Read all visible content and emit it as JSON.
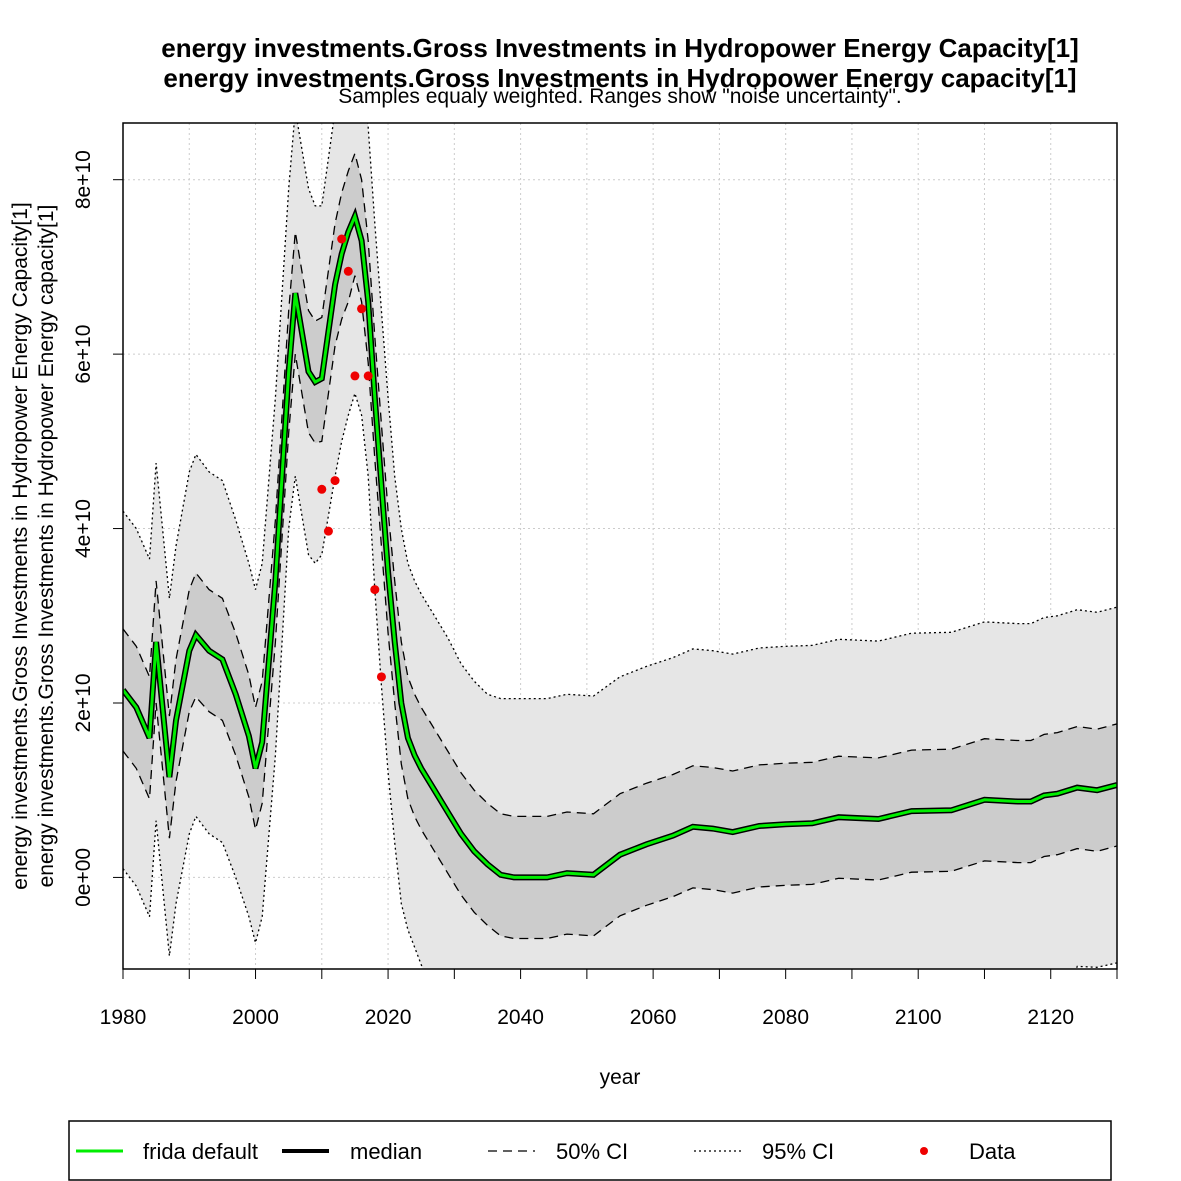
{
  "titles": [
    "energy investments.Gross Investments in Hydropower Energy Capacity[1]",
    "energy investments.Gross Investments in Hydropower Energy capacity[1]"
  ],
  "subtitle": "Samples equaly weighted. Ranges show \"noise uncertainty\".",
  "xlabel": "year",
  "ylabels": [
    "energy investments.Gross Investments in Hydropower Energy Capacity[1]",
    "energy investments.Gross Investments in Hydropower Energy capacity[1]"
  ],
  "legend": {
    "frida": "frida default",
    "median": "median",
    "ci50": "50% CI",
    "ci95": "95% CI",
    "data": "Data"
  },
  "colors": {
    "frida": "#00ee00",
    "median": "#000000",
    "ci50_fill": "#cccccc",
    "ci95_fill": "#e6e6e6",
    "data": "#ee0000",
    "grid": "#cccccc"
  },
  "chart_data": {
    "type": "line",
    "xlim": [
      1980,
      2130
    ],
    "ylim": [
      -10500000000.0,
      86500000000.0
    ],
    "xticks": [
      1980,
      2000,
      2020,
      2040,
      2060,
      2080,
      2100,
      2120
    ],
    "xtick_labels": [
      "1980",
      "2000",
      "2020",
      "2040",
      "2060",
      "2080",
      "2100",
      "2120"
    ],
    "yticks": [
      0,
      20000000000.0,
      40000000000.0,
      60000000000.0,
      80000000000.0
    ],
    "ytick_labels": [
      "0e+00",
      "2e+10",
      "4e+10",
      "6e+10",
      "8e+10"
    ],
    "grid": true,
    "legend_position": "bottom",
    "x": [
      1980,
      1982,
      1984,
      1985,
      1987,
      1988,
      1990,
      1991,
      1993,
      1995,
      1997,
      1999,
      2000,
      2001,
      2003,
      2005,
      2006,
      2008,
      2009,
      2010,
      2012,
      2013,
      2014,
      2015,
      2016,
      2017,
      2018,
      2019,
      2020,
      2021,
      2022,
      2023,
      2024,
      2025,
      2027,
      2029,
      2031,
      2033,
      2035,
      2037,
      2039,
      2040,
      2044,
      2047,
      2051,
      2055,
      2059,
      2063,
      2066,
      2069,
      2072,
      2076,
      2080,
      2084,
      2088,
      2094,
      2099,
      2105,
      2110,
      2115,
      2117,
      2119,
      2121,
      2124,
      2127,
      2130
    ],
    "series": [
      {
        "name": "frida default",
        "values": [
          21500000000.0,
          19500000000.0,
          16000000000.0,
          27000000000.0,
          11500000000.0,
          18000000000.0,
          26000000000.0,
          27800000000.0,
          26000000000.0,
          25000000000.0,
          21000000000.0,
          16200000000.0,
          12500000000.0,
          15500000000.0,
          34000000000.0,
          58000000000.0,
          67000000000.0,
          58000000000.0,
          56800000000.0,
          57200000000.0,
          68000000000.0,
          71500000000.0,
          74000000000.0,
          75800000000.0,
          73000000000.0,
          66000000000.0,
          55000000000.0,
          45000000000.0,
          35000000000.0,
          27000000000.0,
          20000000000.0,
          16000000000.0,
          14000000000.0,
          12500000000.0,
          10000000000.0,
          7500000000.0,
          5000000000.0,
          3000000000.0,
          1500000000.0,
          300000000.0,
          0,
          0,
          0,
          500000000.0,
          300000000.0,
          2600000000.0,
          3800000000.0,
          4800000000.0,
          5800000000.0,
          5600000000.0,
          5200000000.0,
          5900000000.0,
          6100000000.0,
          6200000000.0,
          6900000000.0,
          6700000000.0,
          7600000000.0,
          7700000000.0,
          8900000000.0,
          8700000000.0,
          8700000000.0,
          9400000000.0,
          9600000000.0,
          10300000000.0,
          10000000000.0,
          10600000000.0
        ]
      },
      {
        "name": "median",
        "values": [
          21500000000.0,
          19500000000.0,
          16000000000.0,
          27000000000.0,
          11500000000.0,
          18000000000.0,
          26000000000.0,
          27800000000.0,
          26000000000.0,
          25000000000.0,
          21000000000.0,
          16200000000.0,
          12500000000.0,
          15500000000.0,
          34000000000.0,
          58000000000.0,
          67000000000.0,
          58000000000.0,
          56800000000.0,
          57200000000.0,
          68000000000.0,
          71500000000.0,
          74000000000.0,
          75800000000.0,
          73000000000.0,
          66000000000.0,
          55000000000.0,
          45000000000.0,
          35000000000.0,
          27000000000.0,
          20000000000.0,
          16000000000.0,
          14000000000.0,
          12500000000.0,
          10000000000.0,
          7500000000.0,
          5000000000.0,
          3000000000.0,
          1500000000.0,
          300000000.0,
          0,
          0,
          0,
          500000000.0,
          300000000.0,
          2600000000.0,
          3800000000.0,
          4800000000.0,
          5800000000.0,
          5600000000.0,
          5200000000.0,
          5900000000.0,
          6100000000.0,
          6200000000.0,
          6900000000.0,
          6700000000.0,
          7600000000.0,
          7700000000.0,
          8900000000.0,
          8700000000.0,
          8700000000.0,
          9400000000.0,
          9600000000.0,
          10300000000.0,
          10000000000.0,
          10600000000.0
        ]
      }
    ],
    "ci50": {
      "lower": [
        14500000000.0,
        12500000000.0,
        9000000000.0,
        20000000000.0,
        4500000000.0,
        11000000000.0,
        19000000000.0,
        20700000000.0,
        19000000000.0,
        18000000000.0,
        14000000000.0,
        9200000000.0,
        5500000000.0,
        8500000000.0,
        27000000000.0,
        51000000000.0,
        60000000000.0,
        51000000000.0,
        49800000000.0,
        50000000000.0,
        61000000000.0,
        64000000000.0,
        66000000000.0,
        69000000000.0,
        66000000000.0,
        59000000000.0,
        48000000000.0,
        38000000000.0,
        28000000000.0,
        20000000000.0,
        13000000000.0,
        9000000000.0,
        7000000000.0,
        5500000000.0,
        3000000000.0,
        500000000.0,
        -2000000000.0,
        -4000000000.0,
        -5500000000.0,
        -6700000000.0,
        -7000000000.0,
        -7000000000.0,
        -7000000000.0,
        -6500000000.0,
        -6700000000.0,
        -4400000000.0,
        -3200000000.0,
        -2200000000.0,
        -1200000000.0,
        -1400000000.0,
        -1800000000.0,
        -1100000000.0,
        -900000000.0,
        -800000000.0,
        -100000000.0,
        -300000000.0,
        600000000.0,
        700000000.0,
        1900000000.0,
        1700000000.0,
        1700000000.0,
        2400000000.0,
        2600000000.0,
        3300000000.0,
        3000000000.0,
        3600000000.0
      ],
      "upper": [
        28500000000.0,
        26500000000.0,
        23000000000.0,
        34000000000.0,
        18500000000.0,
        25000000000.0,
        33000000000.0,
        34900000000.0,
        33000000000.0,
        32000000000.0,
        28000000000.0,
        23200000000.0,
        19500000000.0,
        22500000000.0,
        41000000000.0,
        65000000000.0,
        74000000000.0,
        65000000000.0,
        63800000000.0,
        64200000000.0,
        75000000000.0,
        78500000000.0,
        81000000000.0,
        83000000000.0,
        80000000000.0,
        73000000000.0,
        62000000000.0,
        52000000000.0,
        42000000000.0,
        34000000000.0,
        27000000000.0,
        23000000000.0,
        21000000000.0,
        19500000000.0,
        17000000000.0,
        14500000000.0,
        12000000000.0,
        10000000000.0,
        8500000000.0,
        7300000000.0,
        7000000000.0,
        7000000000.0,
        7000000000.0,
        7500000000.0,
        7300000000.0,
        9600000000.0,
        10800000000.0,
        11800000000.0,
        12800000000.0,
        12600000000.0,
        12200000000.0,
        12900000000.0,
        13100000000.0,
        13200000000.0,
        13900000000.0,
        13700000000.0,
        14600000000.0,
        14700000000.0,
        15900000000.0,
        15700000000.0,
        15700000000.0,
        16400000000.0,
        16600000000.0,
        17300000000.0,
        17000000000.0,
        17600000000.0
      ]
    },
    "ci95": {
      "lower": [
        1000000000.0,
        -1000000000.0,
        -4500000000.0,
        6500000000.0,
        -9000000000.0,
        -3000000000.0,
        5000000000.0,
        7000000000.0,
        5000000000.0,
        4000000000.0,
        0,
        -4500000000.0,
        -7500000000.0,
        -4500000000.0,
        14000000000.0,
        40000000000.0,
        46000000000.0,
        37000000000.0,
        36000000000.0,
        37000000000.0,
        46000000000.0,
        50000000000.0,
        53000000000.0,
        55500000000.0,
        53000000000.0,
        46000000000.0,
        33000000000.0,
        22000000000.0,
        12000000000.0,
        4000000000.0,
        -3000000000.0,
        -6000000000.0,
        -8000000000.0,
        -10000000000.0,
        -14000000000.0,
        -17000000000.0,
        -20000000000.0,
        -23000000000.0,
        -26000000000.0,
        -28000000000.0,
        -29000000000.0,
        -29000000000.0,
        -29000000000.0,
        -28000000000.0,
        -28000000000.0,
        -26000000000.0,
        -25000000000.0,
        -24000000000.0,
        -23000000000.0,
        -23000000000.0,
        -23000000000.0,
        -22000000000.0,
        -22000000000.0,
        -22000000000.0,
        -21000000000.0,
        -21000000000.0,
        -20000000000.0,
        -20000000000.0,
        -19000000000.0,
        -19000000000.0,
        -19000000000.0,
        -18000000000.0,
        -18000000000.0,
        -10200000000.0,
        -10300000000.0,
        -9800000000.0
      ]
    },
    "ci95_upper": [
      42000000000.0,
      40000000000.0,
      36500000000.0,
      47500000000.0,
      32000000000.0,
      38000000000.0,
      46500000000.0,
      48500000000.0,
      46500000000.0,
      45500000000.0,
      41000000000.0,
      36000000000.0,
      33000000000.0,
      36000000000.0,
      55000000000.0,
      79000000000.0,
      88000000000.0,
      79000000000.0,
      77000000000.0,
      77000000000.0,
      88000000000.0,
      92000000000.0,
      94000000000.0,
      96000000000.0,
      93000000000.0,
      86000000000.0,
      75000000000.0,
      65000000000.0,
      55000000000.0,
      46000000000.0,
      40000000000.0,
      36000000000.0,
      34000000000.0,
      32500000000.0,
      30000000000.0,
      27500000000.0,
      24500000000.0,
      22500000000.0,
      21000000000.0,
      20500000000.0,
      20500000000.0,
      20500000000.0,
      20500000000.0,
      21000000000.0,
      20800000000.0,
      23000000000.0,
      24200000000.0,
      25200000000.0,
      26200000000.0,
      26000000000.0,
      25600000000.0,
      26300000000.0,
      26500000000.0,
      26600000000.0,
      27300000000.0,
      27100000000.0,
      28000000000.0,
      28100000000.0,
      29300000000.0,
      29100000000.0,
      29100000000.0,
      29800000000.0,
      30000000000.0,
      30700000000.0,
      30400000000.0,
      31000000000.0
    ],
    "data_points": {
      "x": [
        2010,
        2011,
        2012,
        2013,
        2014,
        2015,
        2016,
        2017,
        2018,
        2019
      ],
      "y": [
        44500000000.0,
        39700000000.0,
        45500000000.0,
        73200000000.0,
        69500000000.0,
        57500000000.0,
        65200000000.0,
        57500000000.0,
        33000000000.0,
        23000000000.0
      ]
    }
  }
}
